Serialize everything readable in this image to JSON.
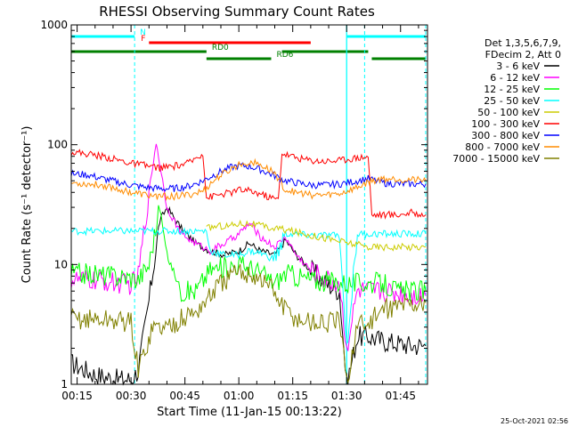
{
  "chart_data": {
    "type": "line",
    "title": "RHESSI Observing Summary Count Rates",
    "xlabel": "Start Time (11-Jan-15 00:13:22)",
    "ylabel": "Count Rate (s⁻¹ detector⁻¹)",
    "yscale": "log",
    "xlim": [
      "00:13:22",
      "01:52:30"
    ],
    "ylim": [
      1,
      1000
    ],
    "x_ticks": [
      "00:15",
      "00:30",
      "00:45",
      "01:00",
      "01:15",
      "01:30",
      "01:45"
    ],
    "y_ticks": [
      "1",
      "10",
      "100",
      "1000"
    ],
    "grid": false,
    "timestamp": "25-Oct-2021 02:56",
    "legend": {
      "placement": "right",
      "header": [
        "Det 1,3,5,6,7,9,",
        "FDecim 2, Att 0"
      ],
      "entries": [
        {
          "label": "3 - 6 keV",
          "color": "#000000"
        },
        {
          "label": "6 - 12 keV",
          "color": "#ff00ff"
        },
        {
          "label": "12 - 25 keV",
          "color": "#00ff00"
        },
        {
          "label": "25 - 50 keV",
          "color": "#00ffff"
        },
        {
          "label": "50 - 100 keV",
          "color": "#cccc00"
        },
        {
          "label": "100 - 300 keV",
          "color": "#ff0000"
        },
        {
          "label": "300 - 800 keV",
          "color": "#0000ff"
        },
        {
          "label": "800 - 7000 keV",
          "color": "#ff8c00"
        },
        {
          "label": "7000 - 15000 keV",
          "color": "#808000"
        }
      ]
    },
    "state_bars": [
      {
        "label": "N",
        "color": "#00ffff",
        "segments": [
          [
            "00:13:22",
            "00:31:00"
          ],
          [
            "01:30:00",
            "01:52:00"
          ]
        ]
      },
      {
        "label": "F",
        "color": "#ff0000",
        "segments": [
          [
            "00:35:00",
            "01:20:00"
          ]
        ]
      },
      {
        "label": "RD0",
        "color": "#008000",
        "segments": [
          [
            "00:13:22",
            "00:51:00"
          ],
          [
            "01:12:00",
            "01:36:00"
          ]
        ]
      },
      {
        "label": "RD6",
        "color": "#008000",
        "segments": [
          [
            "00:51:00",
            "01:09:00"
          ],
          [
            "01:37:00",
            "01:52:00"
          ]
        ]
      }
    ],
    "night_markers": [
      "00:31:00",
      "01:35:00",
      "01:52:00"
    ],
    "saa_interval": [
      "01:30:00",
      "01:30:00"
    ],
    "series": [
      {
        "name": "3 - 6 keV",
        "color": "#000000",
        "x": [
          "00:13:22",
          "00:20",
          "00:26",
          "00:30",
          "00:32",
          "00:35",
          "00:38",
          "00:40",
          "00:44",
          "00:48",
          "00:52",
          "00:56",
          "01:00",
          "01:03",
          "01:06",
          "01:10",
          "01:13",
          "01:16",
          "01:20",
          "01:24",
          "01:28",
          "01:30",
          "01:33",
          "01:36",
          "01:40",
          "01:44",
          "01:48",
          "01:52"
        ],
        "y": [
          1.5,
          1.2,
          1.1,
          1.1,
          1.3,
          5,
          23,
          30,
          20,
          15,
          13,
          12,
          13,
          15,
          13,
          12,
          16,
          12,
          9,
          7,
          6,
          1,
          2.5,
          2.5,
          2.3,
          2.2,
          2.1,
          2.1
        ]
      },
      {
        "name": "6 - 12 keV",
        "color": "#ff00ff",
        "x": [
          "00:13:22",
          "00:20",
          "00:26",
          "00:30",
          "00:32",
          "00:35",
          "00:37",
          "00:38",
          "00:40",
          "00:44",
          "00:48",
          "00:52",
          "00:56",
          "01:00",
          "01:03",
          "01:06",
          "01:10",
          "01:13",
          "01:16",
          "01:20",
          "01:24",
          "01:28",
          "01:30",
          "01:33",
          "01:36",
          "01:40",
          "01:44",
          "01:48",
          "01:52"
        ],
        "y": [
          7.5,
          7.3,
          7.0,
          6.8,
          8,
          40,
          105,
          70,
          30,
          18,
          15,
          13,
          15,
          18,
          22,
          17,
          14,
          17,
          12,
          9,
          7.5,
          7,
          2,
          6,
          6,
          6,
          5.8,
          5.6,
          5.5
        ]
      },
      {
        "name": "12 - 25 keV",
        "color": "#00ff00",
        "x": [
          "00:13:22",
          "00:20",
          "00:26",
          "00:30",
          "00:32",
          "00:35",
          "00:38",
          "00:40",
          "00:44",
          "00:48",
          "00:52",
          "00:56",
          "01:00",
          "01:03",
          "01:06",
          "01:10",
          "01:13",
          "01:16",
          "01:20",
          "01:24",
          "01:28",
          "01:30",
          "01:33",
          "01:36",
          "01:40",
          "01:44",
          "01:48",
          "01:52"
        ],
        "y": [
          8.5,
          8.3,
          8.0,
          7.8,
          7.5,
          10,
          30,
          12,
          6,
          6,
          9,
          9.5,
          10,
          9.5,
          8.5,
          7,
          8.5,
          8,
          7.5,
          7.2,
          7.2,
          7,
          7,
          7,
          7,
          6,
          6,
          6
        ]
      },
      {
        "name": "25 - 50 keV",
        "color": "#00ffff",
        "x": [
          "00:13:22",
          "00:20",
          "00:26",
          "00:30",
          "00:32",
          "00:40",
          "00:46",
          "00:51",
          "00:52",
          "00:56",
          "01:00",
          "01:03",
          "01:06",
          "01:10",
          "01:13",
          "01:20",
          "01:28",
          "01:30",
          "01:33",
          "01:36",
          "01:40",
          "01:44",
          "01:48",
          "01:52"
        ],
        "y": [
          19,
          19,
          19,
          19,
          19,
          19,
          19,
          19,
          13,
          12,
          12,
          13,
          12.5,
          11,
          18,
          17.5,
          17.5,
          2,
          18,
          18,
          18,
          18,
          18,
          18
        ]
      },
      {
        "name": "50 - 100 keV",
        "color": "#cccc00",
        "x": [
          "00:51",
          "00:54",
          "00:57",
          "01:00",
          "01:03",
          "01:06",
          "01:09",
          "01:11",
          "01:36",
          "01:40",
          "01:44",
          "01:48",
          "01:52"
        ],
        "y": [
          20,
          21,
          21,
          22,
          22,
          21,
          20,
          20,
          14,
          14,
          14,
          14,
          14
        ]
      },
      {
        "name": "100 - 300 keV",
        "color": "#ff0000",
        "x": [
          "00:13:22",
          "00:18",
          "00:22",
          "00:26",
          "00:30",
          "00:34",
          "00:38",
          "00:42",
          "00:46",
          "00:50",
          "00:51",
          "00:54",
          "00:58",
          "01:00",
          "01:03",
          "01:06",
          "01:09",
          "01:11",
          "01:12",
          "01:16",
          "01:20",
          "01:24",
          "01:28",
          "01:30",
          "01:33",
          "01:36",
          "01:37",
          "01:40",
          "01:44",
          "01:48",
          "01:52"
        ],
        "y": [
          87,
          84,
          80,
          75,
          70,
          67,
          64,
          66,
          70,
          85,
          36,
          38,
          40,
          42,
          41,
          39,
          36,
          35,
          85,
          78,
          74,
          73,
          74,
          76,
          78,
          80,
          26,
          26,
          26,
          27,
          26
        ]
      },
      {
        "name": "300 - 800 keV",
        "color": "#0000ff",
        "x": [
          "00:13:22",
          "00:18",
          "00:22",
          "00:26",
          "00:30",
          "00:34",
          "00:38",
          "00:42",
          "00:46",
          "00:50",
          "00:54",
          "00:58",
          "01:00",
          "01:03",
          "01:06",
          "01:10",
          "01:13",
          "01:16",
          "01:20",
          "01:24",
          "01:28",
          "01:30",
          "01:33",
          "01:36",
          "01:40",
          "01:44",
          "01:48",
          "01:52"
        ],
        "y": [
          57,
          56,
          52,
          49,
          46,
          44,
          43,
          43,
          45,
          50,
          58,
          65,
          67,
          66,
          62,
          55,
          50,
          48,
          46,
          46,
          47,
          48,
          50,
          52,
          48,
          47,
          47,
          47
        ]
      },
      {
        "name": "800 - 7000 keV",
        "color": "#ff8c00",
        "x": [
          "00:13:22",
          "00:18",
          "00:22",
          "00:26",
          "00:30",
          "00:34",
          "00:38",
          "00:42",
          "00:46",
          "00:50",
          "00:54",
          "00:58",
          "01:00",
          "01:03",
          "01:06",
          "01:10",
          "01:13",
          "01:16",
          "01:20",
          "01:24",
          "01:28",
          "01:30",
          "01:33",
          "01:36",
          "01:40",
          "01:44",
          "01:48",
          "01:52"
        ],
        "y": [
          48,
          47,
          46,
          43,
          40,
          38,
          37,
          37,
          38,
          41,
          53,
          63,
          68,
          72,
          68,
          58,
          42,
          40,
          38,
          38,
          39,
          41,
          44,
          49,
          52,
          52,
          51,
          50
        ]
      },
      {
        "name": "7000 - 15000 keV",
        "color": "#808000",
        "x": [
          "00:13:22",
          "00:20",
          "00:26",
          "00:30",
          "00:32",
          "00:36",
          "00:40",
          "00:44",
          "00:48",
          "00:51",
          "00:54",
          "00:58",
          "01:00",
          "01:03",
          "01:06",
          "01:09",
          "01:12",
          "01:16",
          "01:20",
          "01:24",
          "01:28",
          "01:30",
          "01:33",
          "01:36",
          "01:40",
          "01:44",
          "01:48",
          "01:52"
        ],
        "y": [
          3.5,
          3.5,
          3.4,
          3.3,
          1.3,
          3,
          3,
          3.5,
          4,
          5,
          6.5,
          8,
          8.5,
          8.5,
          7.5,
          6.5,
          4.5,
          3.5,
          3.3,
          3.2,
          3.4,
          1,
          3.2,
          3.2,
          4.2,
          4.5,
          4.7,
          4.8
        ]
      }
    ]
  }
}
